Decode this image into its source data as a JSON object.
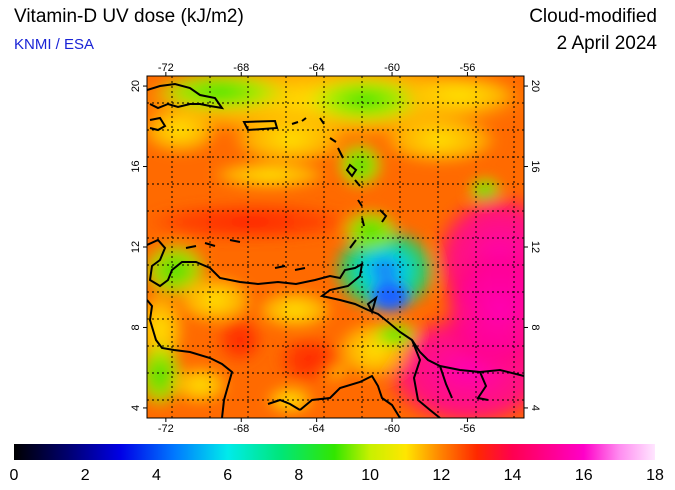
{
  "header": {
    "title": "Vitamin-D UV dose (kJ/m2)",
    "source": "KNMI / ESA",
    "product": "Cloud-modified",
    "date": "2 April 2024"
  },
  "map": {
    "lon_range": [
      -73,
      -53
    ],
    "lat_range": [
      3.5,
      20.5
    ],
    "lon_ticks": [
      -72,
      -68,
      -64,
      -60,
      -56
    ],
    "lat_ticks": [
      4,
      8,
      12,
      16,
      20
    ],
    "lon_tick_labels": [
      "-72",
      "-68",
      "-64",
      "-60",
      "-56"
    ],
    "lat_tick_labels": [
      "4",
      "8",
      "12",
      "16",
      "20"
    ]
  },
  "colorbar": {
    "min": 0,
    "max": 18,
    "labels": [
      "0",
      "2",
      "4",
      "6",
      "8",
      "10",
      "12",
      "14",
      "16",
      "18"
    ],
    "stops": [
      {
        "value": 0,
        "color": "#000000"
      },
      {
        "value": 1.5,
        "color": "#00006e"
      },
      {
        "value": 3,
        "color": "#0000e6"
      },
      {
        "value": 4.5,
        "color": "#0078ff"
      },
      {
        "value": 6,
        "color": "#00ebeb"
      },
      {
        "value": 7.5,
        "color": "#00e678"
      },
      {
        "value": 9,
        "color": "#32e600"
      },
      {
        "value": 10,
        "color": "#c8f000"
      },
      {
        "value": 11,
        "color": "#ffe600"
      },
      {
        "value": 12,
        "color": "#ff8200"
      },
      {
        "value": 13,
        "color": "#ff2800"
      },
      {
        "value": 14,
        "color": "#ff0050"
      },
      {
        "value": 16,
        "color": "#ff00c8"
      },
      {
        "value": 17,
        "color": "#ff8cf0"
      },
      {
        "value": 18,
        "color": "#ffe6ff"
      }
    ]
  }
}
